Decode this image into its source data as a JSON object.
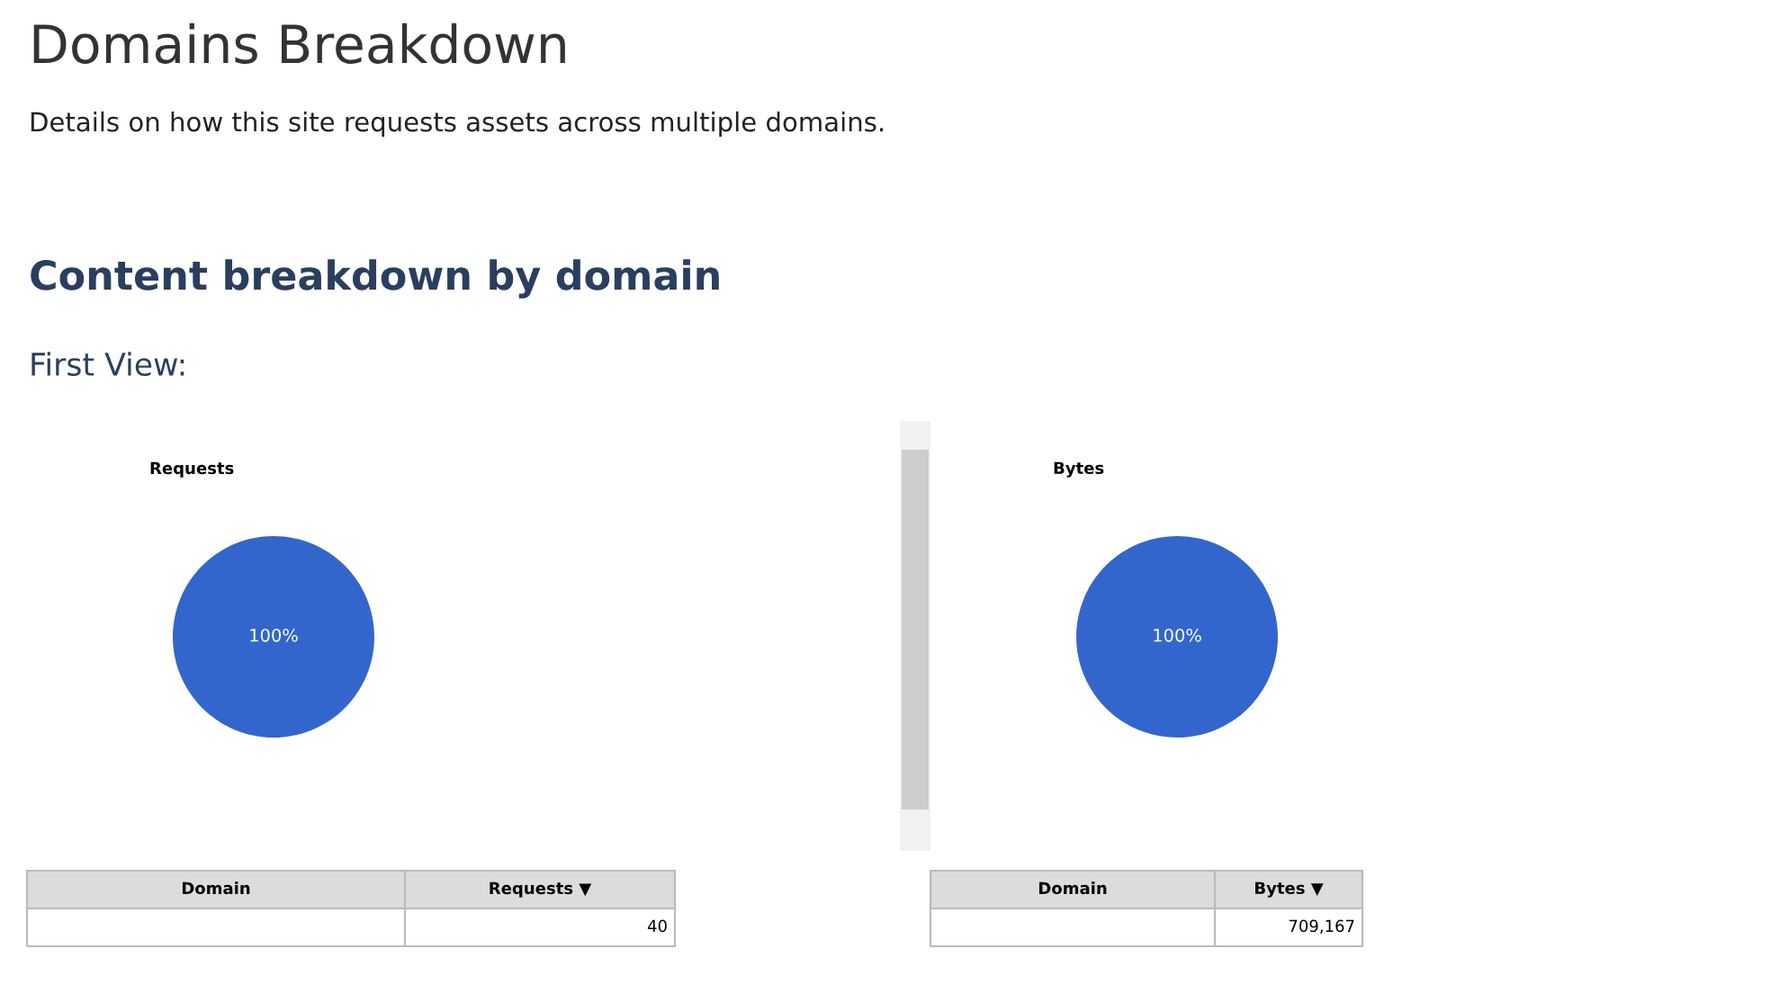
{
  "chart_data": [
    {
      "type": "other",
      "title": "Domains Breakdown",
      "subtitle": "Details on how this site requests assets across multiple domains.",
      "annotations": [
        "Content breakdown by domain",
        "First View:"
      ]
    },
    {
      "type": "pie",
      "title": "Requests",
      "categories": [
        null
      ],
      "values": [
        100
      ],
      "value_labels": [
        "100%"
      ],
      "colors": [
        "#3366cc"
      ],
      "annotations": [
        "Domain",
        "Requests ▼",
        "40"
      ]
    },
    {
      "type": "pie",
      "title": "Bytes",
      "categories": [
        null
      ],
      "values": [
        100
      ],
      "value_labels": [
        "100%"
      ],
      "colors": [
        "#3366cc"
      ],
      "annotations": [
        "Domain",
        "Bytes ▼",
        "709,167"
      ]
    }
  ]
}
